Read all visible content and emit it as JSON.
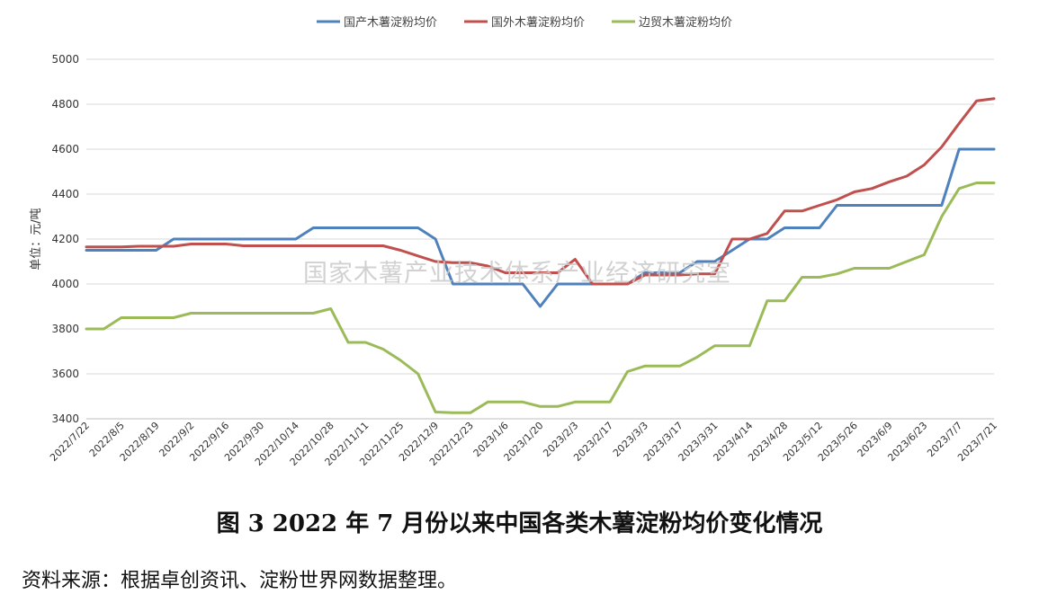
{
  "chart_data": {
    "type": "line",
    "title": "",
    "xlabel": "",
    "ylabel": "单位：元/吨",
    "ylim": [
      3400,
      5000
    ],
    "yticks": [
      3400,
      3600,
      3800,
      4000,
      4200,
      4400,
      4600,
      4800,
      5000
    ],
    "grid": true,
    "legend_position": "top-center",
    "watermark": "国家木薯产业技术体系产业经济研究室",
    "x": [
      "2022/7/22",
      "2022/7/29",
      "2022/8/5",
      "2022/8/12",
      "2022/8/19",
      "2022/8/26",
      "2022/9/2",
      "2022/9/9",
      "2022/9/16",
      "2022/9/23",
      "2022/9/30",
      "2022/10/7",
      "2022/10/14",
      "2022/10/21",
      "2022/10/28",
      "2022/11/4",
      "2022/11/11",
      "2022/11/18",
      "2022/11/25",
      "2022/12/2",
      "2022/12/9",
      "2022/12/16",
      "2022/12/23",
      "2022/12/30",
      "2023/1/6",
      "2023/1/13",
      "2023/1/20",
      "2023/1/27",
      "2023/2/3",
      "2023/2/10",
      "2023/2/17",
      "2023/2/24",
      "2023/3/3",
      "2023/3/10",
      "2023/3/17",
      "2023/3/24",
      "2023/3/31",
      "2023/4/7",
      "2023/4/14",
      "2023/4/21",
      "2023/4/28",
      "2023/5/5",
      "2023/5/12",
      "2023/5/19",
      "2023/5/26",
      "2023/6/2",
      "2023/6/9",
      "2023/6/16",
      "2023/6/23",
      "2023/6/30",
      "2023/7/7",
      "2023/7/14",
      "2023/7/21"
    ],
    "xtick_labels": [
      "2022/7/22",
      "2022/8/5",
      "2022/8/19",
      "2022/9/2",
      "2022/9/16",
      "2022/9/30",
      "2022/10/14",
      "2022/10/28",
      "2022/11/11",
      "2022/11/25",
      "2022/12/9",
      "2022/12/23",
      "2023/1/6",
      "2023/1/20",
      "2023/2/3",
      "2023/2/17",
      "2023/3/3",
      "2023/3/17",
      "2023/3/31",
      "2023/4/14",
      "2023/4/28",
      "2023/5/12",
      "2023/5/26",
      "2023/6/9",
      "2023/6/23",
      "2023/7/7",
      "2023/7/21"
    ],
    "series": [
      {
        "name": "国产木薯淀粉均价",
        "color": "#4f81bd",
        "values": [
          4150,
          4150,
          4150,
          4150,
          4150,
          4200,
          4200,
          4200,
          4200,
          4200,
          4200,
          4200,
          4200,
          4250,
          4250,
          4250,
          4250,
          4250,
          4250,
          4250,
          4200,
          4000,
          4000,
          4000,
          4000,
          4000,
          3900,
          4000,
          4000,
          4000,
          4000,
          4000,
          4050,
          4050,
          4050,
          4100,
          4100,
          4150,
          4200,
          4200,
          4250,
          4250,
          4250,
          4350,
          4350,
          4350,
          4350,
          4350,
          4350,
          4350,
          4600,
          4600,
          4600
        ]
      },
      {
        "name": "国外木薯淀粉均价",
        "color": "#c0504d",
        "values": [
          4165,
          4165,
          4165,
          4168,
          4168,
          4168,
          4178,
          4178,
          4178,
          4170,
          4170,
          4170,
          4170,
          4170,
          4170,
          4170,
          4170,
          4170,
          4150,
          4125,
          4100,
          4095,
          4095,
          4080,
          4050,
          4050,
          4050,
          4050,
          4110,
          4000,
          4000,
          4000,
          4040,
          4040,
          4040,
          4045,
          4045,
          4200,
          4200,
          4225,
          4325,
          4325,
          4350,
          4375,
          4410,
          4425,
          4455,
          4480,
          4530,
          4610,
          4715,
          4815,
          4825
        ]
      },
      {
        "name": "边贸木薯淀粉均价",
        "color": "#9bbb59",
        "values": [
          3800,
          3800,
          3850,
          3850,
          3850,
          3850,
          3870,
          3870,
          3870,
          3870,
          3870,
          3870,
          3870,
          3870,
          3890,
          3740,
          3740,
          3710,
          3660,
          3600,
          3430,
          3427,
          3427,
          3475,
          3475,
          3475,
          3455,
          3455,
          3475,
          3475,
          3475,
          3610,
          3635,
          3635,
          3635,
          3675,
          3725,
          3725,
          3725,
          3925,
          3925,
          4030,
          4030,
          4045,
          4070,
          4070,
          4070,
          4100,
          4130,
          4300,
          4425,
          4450,
          4450
        ]
      }
    ]
  },
  "caption": "图 3   2022 年 7 月份以来中国各类木薯淀粉均价变化情况",
  "source": "资料来源：根据卓创资讯、淀粉世界网数据整理。"
}
